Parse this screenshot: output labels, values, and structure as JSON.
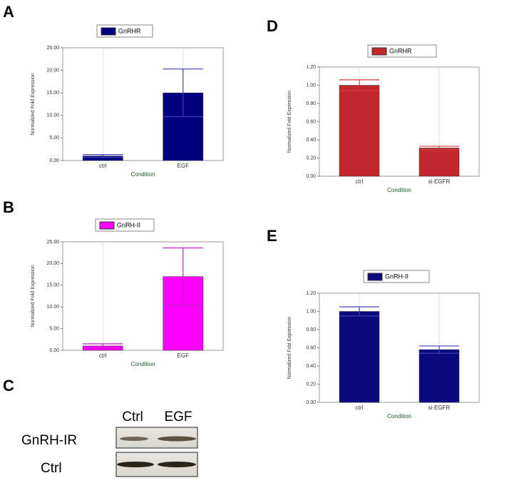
{
  "chart_data": [
    {
      "type": "bar",
      "panel": "A",
      "categories": [
        "ctrl",
        "EGF"
      ],
      "xlabel": "Condition",
      "ylabel": "Normalized Fold Expression",
      "series": [
        {
          "name": "GnRHR",
          "color": "#000080",
          "values": [
            1.0,
            15.0
          ],
          "errors": [
            0.3,
            5.3
          ]
        }
      ],
      "ylim": [
        0,
        25
      ],
      "yticks": [
        {
          "value": 0,
          "label": "0.00"
        },
        {
          "value": 5,
          "label": "5.00"
        },
        {
          "value": 10,
          "label": "10.00"
        },
        {
          "value": 15,
          "label": "15.00"
        },
        {
          "value": 20,
          "label": "20.00"
        },
        {
          "value": 25,
          "label": "25.00"
        }
      ]
    },
    {
      "type": "bar",
      "panel": "B",
      "categories": [
        "ctrl",
        "EGF"
      ],
      "xlabel": "Condition",
      "ylabel": "Normalized Fold Expression",
      "series": [
        {
          "name": "GnRH-II",
          "color": "#ff00ff",
          "values": [
            1.0,
            17.0
          ],
          "errors": [
            0.5,
            6.6
          ]
        }
      ],
      "ylim": [
        0,
        25
      ],
      "yticks": [
        {
          "value": 0,
          "label": "0.00"
        },
        {
          "value": 5,
          "label": "5.00"
        },
        {
          "value": 10,
          "label": "10.00"
        },
        {
          "value": 15,
          "label": "15.00"
        },
        {
          "value": 20,
          "label": "20.00"
        },
        {
          "value": 25,
          "label": "25.00"
        }
      ]
    },
    {
      "type": "bar",
      "panel": "D",
      "categories": [
        "ctrl",
        "si-EGFR"
      ],
      "xlabel": "Condition",
      "ylabel": "Normalized Fold Expression",
      "series": [
        {
          "name": "GnRHR",
          "color": "#c1272d",
          "values": [
            1.0,
            0.31
          ],
          "errors": [
            0.06,
            0.02
          ]
        }
      ],
      "ylim": [
        0,
        1.2
      ],
      "yticks": [
        {
          "value": 0,
          "label": "0.00"
        },
        {
          "value": 0.2,
          "label": "0.20"
        },
        {
          "value": 0.4,
          "label": "0.40"
        },
        {
          "value": 0.6,
          "label": "0.60"
        },
        {
          "value": 0.8,
          "label": "0.80"
        },
        {
          "value": 1.0,
          "label": "1.00"
        },
        {
          "value": 1.2,
          "label": "1.20"
        }
      ]
    },
    {
      "type": "bar",
      "panel": "E",
      "categories": [
        "ctrl",
        "si-EGFR"
      ],
      "xlabel": "Condition",
      "ylabel": "Normalized Fold Expression",
      "series": [
        {
          "name": "GnRH-II",
          "color": "#0a0a80",
          "values": [
            1.0,
            0.58
          ],
          "errors": [
            0.05,
            0.04
          ]
        }
      ],
      "ylim": [
        0,
        1.2
      ],
      "yticks": [
        {
          "value": 0,
          "label": "0.00"
        },
        {
          "value": 0.2,
          "label": "0.20"
        },
        {
          "value": 0.4,
          "label": "0.40"
        },
        {
          "value": 0.6,
          "label": "0.60"
        },
        {
          "value": 0.8,
          "label": "0.80"
        },
        {
          "value": 1.0,
          "label": "1.00"
        },
        {
          "value": 1.2,
          "label": "1.20"
        }
      ]
    }
  ],
  "blot": {
    "panel": "C",
    "columns": [
      "Ctrl",
      "EGF"
    ],
    "rows": [
      "GnRH-IR",
      "Ctrl"
    ]
  }
}
